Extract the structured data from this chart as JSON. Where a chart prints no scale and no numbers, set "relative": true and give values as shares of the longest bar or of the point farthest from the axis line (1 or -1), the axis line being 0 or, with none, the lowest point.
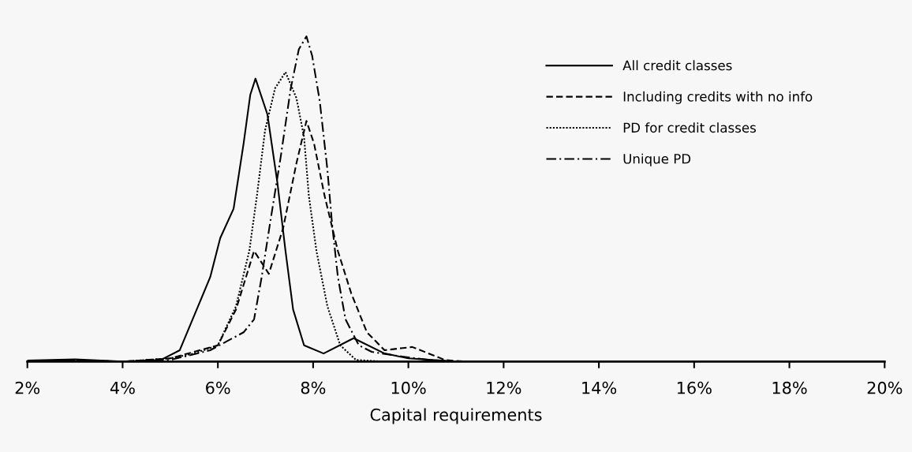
{
  "chart_data": {
    "type": "line",
    "xlabel": "Capital requirements",
    "relative": true,
    "xlim": [
      2,
      20
    ],
    "xticks": [
      {
        "value": 2,
        "label": "2%"
      },
      {
        "value": 4,
        "label": "4%"
      },
      {
        "value": 6,
        "label": "6%"
      },
      {
        "value": 8,
        "label": "8%"
      },
      {
        "value": 10,
        "label": "10%"
      },
      {
        "value": 12,
        "label": "12%"
      },
      {
        "value": 14,
        "label": "14%"
      },
      {
        "value": 16,
        "label": "16%"
      },
      {
        "value": 18,
        "label": "18%"
      },
      {
        "value": 20,
        "label": "20%"
      }
    ],
    "legend": "top right",
    "grid": false,
    "series": [
      {
        "name": "All credit classes",
        "color": "#000000",
        "line_style": "solid",
        "x": [
          2,
          3,
          4,
          4.8,
          5.2,
          5.84,
          6.05,
          6.33,
          6.54,
          6.68,
          6.79,
          7.04,
          7.25,
          7.42,
          7.58,
          7.81,
          8.22,
          8.85,
          9.5,
          10.0,
          11,
          20
        ],
        "values": [
          0.003,
          0.007,
          0,
          0.005,
          0.035,
          0.26,
          0.38,
          0.47,
          0.67,
          0.82,
          0.87,
          0.76,
          0.55,
          0.34,
          0.16,
          0.05,
          0.025,
          0.072,
          0.025,
          0.01,
          0,
          0
        ]
      },
      {
        "name": "Including credits with no info",
        "color": "#000000",
        "line_style": "dashed",
        "x": [
          2,
          3,
          4,
          5,
          6.0,
          6.38,
          6.76,
          7.07,
          7.37,
          7.65,
          7.86,
          8.02,
          8.24,
          8.52,
          8.8,
          9.13,
          9.5,
          10.08,
          10.77,
          11.2,
          20
        ],
        "values": [
          0.003,
          0.004,
          0,
          0.01,
          0.05,
          0.16,
          0.34,
          0.27,
          0.41,
          0.61,
          0.74,
          0.67,
          0.51,
          0.34,
          0.21,
          0.09,
          0.035,
          0.045,
          0.005,
          0,
          0
        ]
      },
      {
        "name": "PD for credit classes",
        "color": "#000000",
        "line_style": "dotted",
        "x": [
          2,
          3,
          4,
          5,
          5.5,
          6.0,
          6.38,
          6.66,
          6.82,
          6.99,
          7.2,
          7.42,
          7.65,
          7.81,
          7.91,
          8.07,
          8.3,
          8.57,
          8.9,
          9.5,
          20
        ],
        "values": [
          0.003,
          0.004,
          0,
          0.01,
          0.025,
          0.05,
          0.17,
          0.34,
          0.51,
          0.71,
          0.84,
          0.89,
          0.81,
          0.69,
          0.51,
          0.34,
          0.17,
          0.05,
          0.005,
          0,
          0
        ]
      },
      {
        "name": "Unique PD",
        "color": "#000000",
        "line_style": "dashdot",
        "x": [
          2,
          3,
          4,
          5,
          5.84,
          6.54,
          6.76,
          6.92,
          7.09,
          7.32,
          7.53,
          7.7,
          7.86,
          7.98,
          8.14,
          8.3,
          8.4,
          8.52,
          8.68,
          8.96,
          9.23,
          9.79,
          10.45,
          11,
          20
        ],
        "values": [
          0.003,
          0.004,
          0,
          0.005,
          0.035,
          0.09,
          0.13,
          0.26,
          0.42,
          0.63,
          0.84,
          0.96,
          1,
          0.94,
          0.8,
          0.59,
          0.42,
          0.26,
          0.13,
          0.05,
          0.03,
          0.017,
          0.005,
          0,
          0
        ]
      }
    ]
  }
}
